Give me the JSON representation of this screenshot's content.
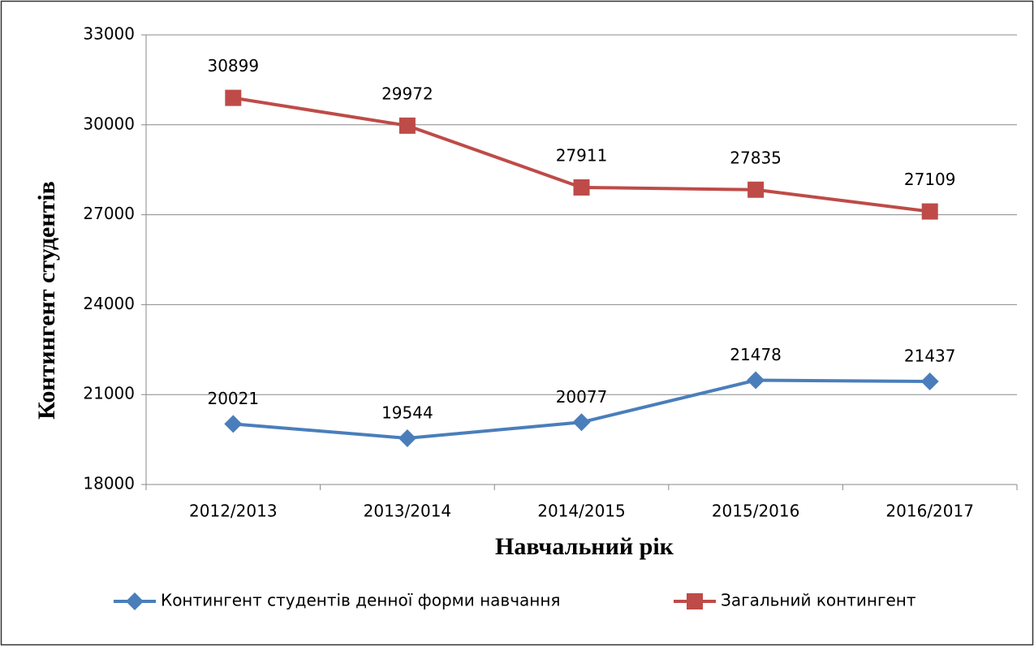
{
  "chart_data": {
    "type": "line",
    "x_label": "Навчальний рік",
    "y_label": "Контингент студентів",
    "categories": [
      "2012/2013",
      "2013/2014",
      "2014/2015",
      "2015/2016",
      "2016/2017"
    ],
    "series": [
      {
        "name": "Контингент студентів денної форми навчання",
        "color": "#4a7ebb",
        "marker": "diamond",
        "values": [
          20021,
          19544,
          20077,
          21478,
          21437
        ]
      },
      {
        "name": "Загальний контингент",
        "color": "#be4b48",
        "marker": "square",
        "values": [
          30899,
          29972,
          27911,
          27835,
          27109
        ]
      }
    ],
    "ylim": [
      18000,
      33000
    ],
    "yticks": [
      18000,
      21000,
      24000,
      27000,
      30000,
      33000
    ],
    "grid": true,
    "legend": "bottom"
  }
}
